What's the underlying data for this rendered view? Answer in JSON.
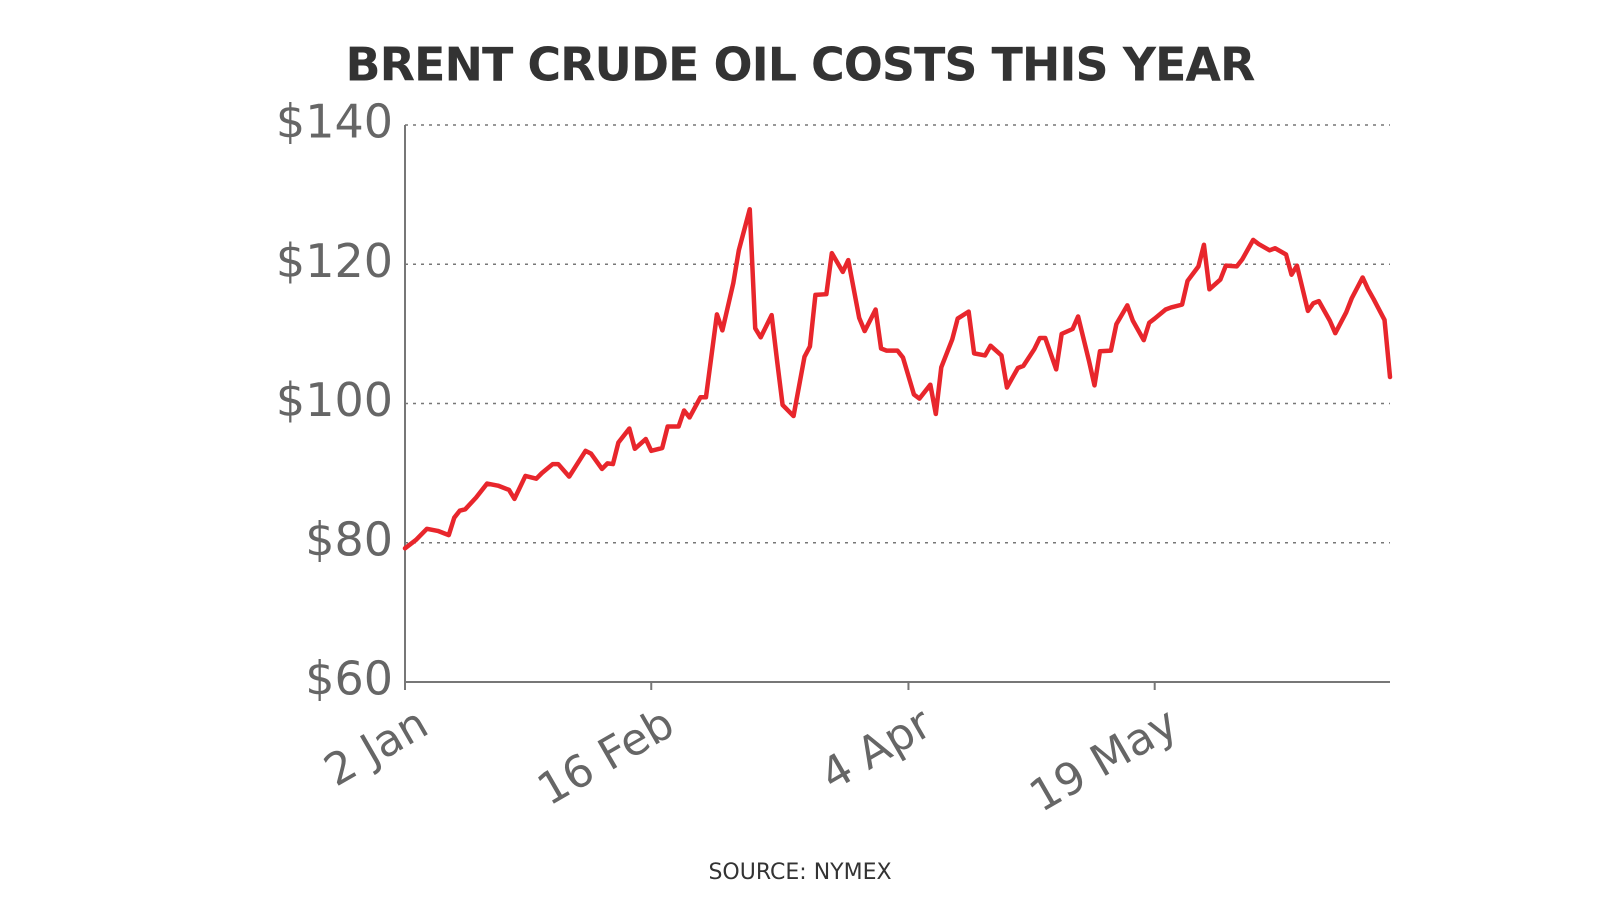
{
  "chart_data": {
    "type": "line",
    "title": "BRENT CRUDE OIL COSTS THIS YEAR",
    "source": "SOURCE: NYMEX",
    "color": "#e8262c",
    "x": [
      "2 Jan",
      "4 Jan",
      "6 Jan",
      "8 Jan",
      "10 Jan",
      "11 Jan",
      "12 Jan",
      "13 Jan",
      "15 Jan",
      "17 Jan",
      "19 Jan",
      "21 Jan",
      "22 Jan",
      "24 Jan",
      "26 Jan",
      "27 Jan",
      "29 Jan",
      "30 Jan",
      "1 Feb",
      "4 Feb",
      "5 Feb",
      "7 Feb",
      "8 Feb",
      "9 Feb",
      "10 Feb",
      "12 Feb",
      "13 Feb",
      "15 Feb",
      "16 Feb",
      "18 Feb",
      "19 Feb",
      "21 Feb",
      "22 Feb",
      "23 Feb",
      "25 Feb",
      "26 Feb",
      "28 Feb",
      "1 Mar",
      "3 Mar",
      "4 Mar",
      "6 Mar",
      "7 Mar",
      "8 Mar",
      "10 Mar",
      "11 Mar",
      "12 Mar",
      "14 Mar",
      "16 Mar",
      "17 Mar",
      "18 Mar",
      "20 Mar",
      "21 Mar",
      "23 Mar",
      "24 Mar",
      "26 Mar",
      "27 Mar",
      "29 Mar",
      "30 Mar",
      "31 Mar",
      "2 Apr",
      "3 Apr",
      "5 Apr",
      "6 Apr",
      "8 Apr",
      "9 Apr",
      "10 Apr",
      "12 Apr",
      "13 Apr",
      "15 Apr",
      "16 Apr",
      "18 Apr",
      "19 Apr",
      "21 Apr",
      "22 Apr",
      "24 Apr",
      "25 Apr",
      "27 Apr",
      "28 Apr",
      "29 Apr",
      "1 May",
      "2 May",
      "4 May",
      "5 May",
      "7 May",
      "8 May",
      "9 May",
      "11 May",
      "12 May",
      "14 May",
      "15 May",
      "17 May",
      "18 May",
      "19 May",
      "21 May",
      "22 May",
      "24 May",
      "25 May",
      "27 May",
      "28 May",
      "29 May",
      "31 May",
      "1 Jun",
      "3 Jun",
      "4 Jun",
      "6 Jun",
      "7 Jun",
      "9 Jun",
      "10 Jun",
      "12 Jun",
      "13 Jun",
      "14 Jun",
      "16 Jun",
      "17 Jun",
      "18 Jun",
      "20 Jun",
      "21 Jun",
      "23 Jun",
      "24 Jun",
      "26 Jun",
      "27 Jun",
      "28 Jun",
      "30 Jun",
      "1 Jul"
    ],
    "values": [
      79.2,
      80.4,
      82.0,
      81.7,
      81.1,
      83.6,
      84.6,
      84.8,
      86.5,
      88.5,
      88.2,
      87.6,
      86.3,
      89.6,
      89.2,
      90.0,
      91.3,
      91.3,
      89.5,
      93.2,
      92.8,
      90.6,
      91.4,
      91.3,
      94.4,
      96.4,
      93.5,
      94.9,
      93.2,
      93.6,
      96.7,
      96.7,
      99.0,
      98.0,
      100.9,
      100.9,
      112.8,
      110.5,
      117.3,
      122.0,
      127.9,
      110.8,
      109.5,
      112.7,
      106.1,
      99.8,
      98.2,
      106.7,
      108.2,
      115.6,
      115.7,
      121.6,
      118.9,
      120.6,
      112.3,
      110.4,
      113.5,
      107.9,
      107.6,
      107.6,
      106.6,
      101.3,
      100.7,
      102.7,
      98.5,
      105.2,
      109.2,
      112.2,
      113.2,
      107.2,
      106.9,
      108.3,
      106.9,
      102.3,
      105.1,
      105.4,
      107.8,
      109.4,
      109.4,
      104.9,
      110.0,
      110.7,
      112.5,
      106.1,
      102.6,
      107.5,
      107.6,
      111.4,
      114.1,
      111.9,
      109.1,
      111.6,
      112.2,
      113.5,
      113.8,
      114.2,
      117.6,
      119.7,
      122.8,
      116.4,
      117.8,
      119.8,
      119.7,
      120.7,
      123.5,
      122.9,
      122.0,
      122.3,
      121.4,
      118.5,
      119.8,
      113.3,
      114.4,
      114.7,
      111.9,
      110.1,
      113.1,
      115.1,
      118.1,
      116.4,
      115.0,
      112.0,
      103.8
    ],
    "xlim": [
      "2 Jan",
      "1 Jul"
    ],
    "xticks": [
      "2 Jan",
      "16 Feb",
      "4 Apr",
      "19 May"
    ],
    "ylim": [
      60,
      140
    ],
    "yticks": [
      {
        "value": 60,
        "label": "$60"
      },
      {
        "value": 80,
        "label": "$80"
      },
      {
        "value": 100,
        "label": "$100"
      },
      {
        "value": 120,
        "label": "$120"
      },
      {
        "value": 140,
        "label": "$140"
      }
    ],
    "grid": true
  }
}
